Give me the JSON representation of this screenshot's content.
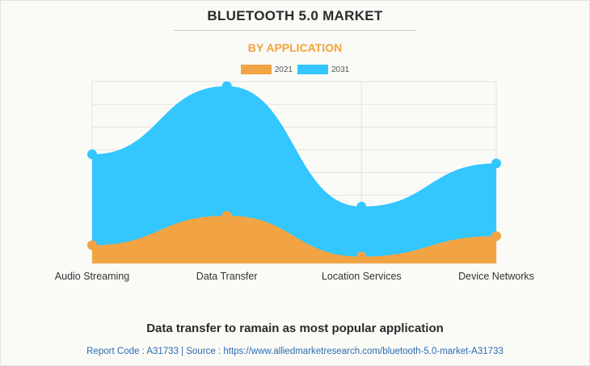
{
  "header": {
    "title": "BLUETOOTH 5.0 MARKET",
    "subtitle": "BY APPLICATION"
  },
  "footer": {
    "headline": "Data transfer to ramain as most popular application",
    "source": "Report Code : A31733  |  Source : https://www.alliedmarketresearch.com/bluetooth-5.0-market-A31733"
  },
  "colors": {
    "series_2021": "#f2a444",
    "series_2031": "#33c6ff",
    "grid": "#e2e2e2",
    "title": "#2b2b2b",
    "subtitle": "#f2a33a",
    "source": "#2a6cb0"
  },
  "chart_data": {
    "type": "area",
    "categories": [
      "Audio Streaming",
      "Data Transfer",
      "Location Services",
      "Device Networks"
    ],
    "series": [
      {
        "name": "2021",
        "values": [
          8,
          21,
          3,
          12
        ],
        "color": "#f2a444"
      },
      {
        "name": "2031",
        "values": [
          48,
          78,
          25,
          44
        ],
        "color": "#33c6ff"
      }
    ],
    "ylim": [
      0,
      80
    ],
    "grid": true,
    "legend": "top-center",
    "stacked": false
  }
}
